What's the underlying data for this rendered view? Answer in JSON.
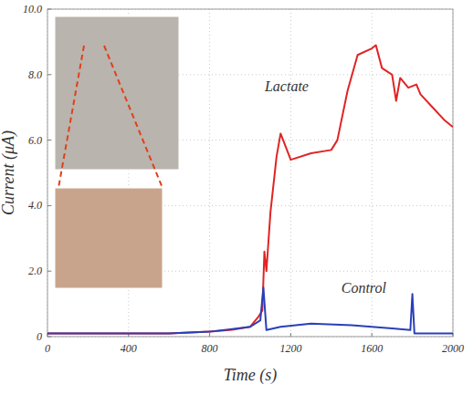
{
  "chart_data": {
    "type": "line",
    "x_label": "Time (s)",
    "y_label": "Current (μA)",
    "xlim": [
      0,
      2000
    ],
    "ylim": [
      0,
      10
    ],
    "xticks": [
      0,
      400,
      800,
      1200,
      1600,
      2000
    ],
    "yticks": [
      0,
      {
        "value": 2,
        "label": "2.0"
      },
      {
        "value": 4,
        "label": "4.0"
      },
      {
        "value": 6,
        "label": "6.0"
      },
      {
        "value": 8,
        "label": "8.0"
      },
      {
        "value": 10,
        "label": "10.0"
      }
    ],
    "grid": true,
    "series": [
      {
        "name": "Lactate",
        "color": "#e02424",
        "x": [
          0,
          200,
          400,
          600,
          800,
          900,
          1000,
          1040,
          1060,
          1070,
          1080,
          1100,
          1130,
          1150,
          1200,
          1300,
          1400,
          1430,
          1480,
          1530,
          1600,
          1620,
          1650,
          1700,
          1720,
          1740,
          1780,
          1820,
          1840,
          1900,
          1960,
          2000
        ],
        "values": [
          0.1,
          0.1,
          0.1,
          0.1,
          0.15,
          0.2,
          0.3,
          0.6,
          0.8,
          2.6,
          2.0,
          3.8,
          5.5,
          6.2,
          5.4,
          5.6,
          5.7,
          6.0,
          7.5,
          8.6,
          8.8,
          8.9,
          8.2,
          8.0,
          7.2,
          7.9,
          7.6,
          7.7,
          7.4,
          7.0,
          6.6,
          6.4
        ]
      },
      {
        "name": "Control",
        "color": "#2a3fb8",
        "x": [
          0,
          200,
          400,
          600,
          800,
          1000,
          1050,
          1065,
          1080,
          1150,
          1300,
          1500,
          1700,
          1790,
          1800,
          1810,
          1900,
          2000
        ],
        "values": [
          0.1,
          0.1,
          0.1,
          0.1,
          0.15,
          0.3,
          0.5,
          1.5,
          0.2,
          0.3,
          0.4,
          0.35,
          0.25,
          0.2,
          1.3,
          0.1,
          0.1,
          0.1
        ]
      }
    ],
    "annotations": [
      {
        "text": "Lactate",
        "x": 1180,
        "y": 7.5
      },
      {
        "text": "Control",
        "x": 1560,
        "y": 1.35
      }
    ]
  }
}
